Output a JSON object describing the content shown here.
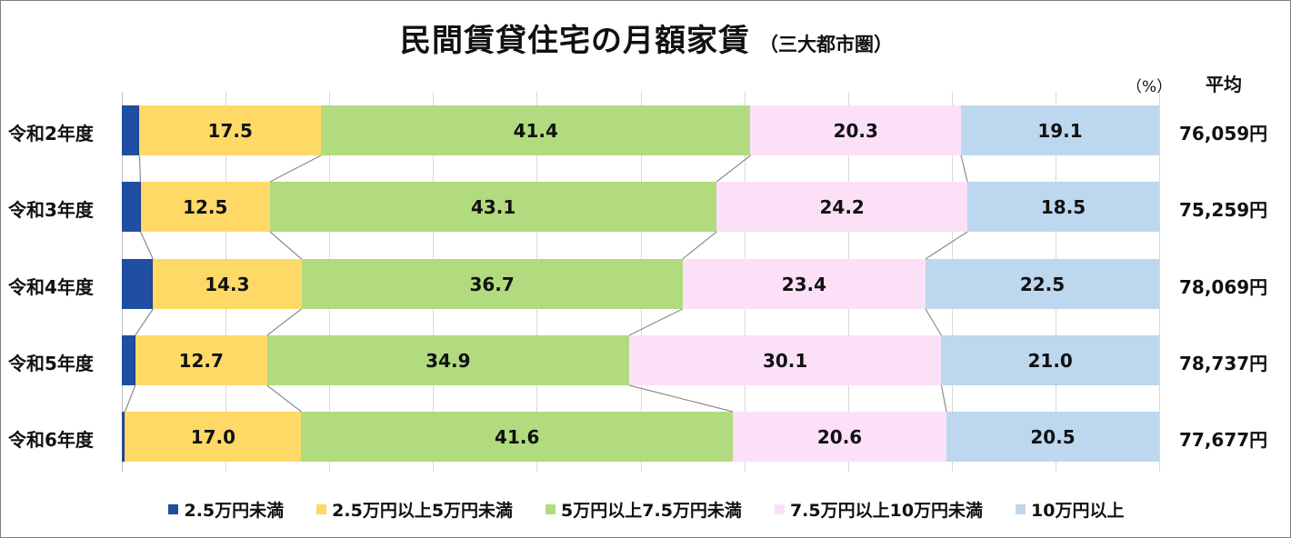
{
  "title": {
    "main": "民間賃貸住宅の月額家賃",
    "sub": "（三大都市圏）"
  },
  "unit_label": "（%）",
  "average_header": "平均",
  "colors": {
    "under_25k": "#1f4ea3",
    "25k_to_50k": "#ffd966",
    "50k_to_75k": "#b1db7e",
    "75k_to_100k": "#fbe0f8",
    "over_100k": "#bdd7ee"
  },
  "chart_data": {
    "type": "bar",
    "orientation": "horizontal",
    "stacked": "100%",
    "title": "民間賃貸住宅の月額家賃（三大都市圏）",
    "xlabel": "",
    "ylabel": "",
    "unit": "%",
    "xlim": [
      0,
      100
    ],
    "grid": true,
    "gridlines_at": [
      0,
      10,
      20,
      30,
      40,
      50,
      60,
      70,
      80,
      90,
      100
    ],
    "legend_position": "bottom",
    "series_connectors": true,
    "categories": [
      "令和2年度",
      "令和3年度",
      "令和4年度",
      "令和5年度",
      "令和6年度"
    ],
    "series": [
      {
        "name": "2.5万円未満",
        "color": "#1f4ea3",
        "values": [
          1.7,
          1.8,
          3.0,
          1.3,
          0.3
        ],
        "labels": [
          "",
          "",
          "",
          "",
          ""
        ]
      },
      {
        "name": "2.5万円以上5万円未満",
        "color": "#ffd966",
        "values": [
          17.5,
          12.5,
          14.3,
          12.7,
          17.0
        ],
        "labels": [
          "17.5",
          "12.5",
          "14.3",
          "12.7",
          "17.0"
        ]
      },
      {
        "name": "5万円以上7.5万円未満",
        "color": "#b1db7e",
        "values": [
          41.4,
          43.1,
          36.7,
          34.9,
          41.6
        ],
        "labels": [
          "41.4",
          "43.1",
          "36.7",
          "34.9",
          "41.6"
        ]
      },
      {
        "name": "7.5万円以上10万円未満",
        "color": "#fbe0f8",
        "values": [
          20.3,
          24.2,
          23.4,
          30.1,
          20.6
        ],
        "labels": [
          "20.3",
          "24.2",
          "23.4",
          "30.1",
          "20.6"
        ]
      },
      {
        "name": "10万円以上",
        "color": "#bdd7ee",
        "values": [
          19.1,
          18.5,
          22.5,
          21.0,
          20.5
        ],
        "labels": [
          "19.1",
          "18.5",
          "22.5",
          "21.0",
          "20.5"
        ]
      }
    ],
    "averages": [
      "76,059円",
      "75,259円",
      "78,069円",
      "78,737円",
      "77,677円"
    ]
  },
  "legend": [
    {
      "label": "2.5万円未満",
      "color": "#1f4ea3"
    },
    {
      "label": "2.5万円以上5万円未満",
      "color": "#ffd966"
    },
    {
      "label": "5万円以上7.5万円未満",
      "color": "#b1db7e"
    },
    {
      "label": "7.5万円以上10万円未満",
      "color": "#fbe0f8"
    },
    {
      "label": "10万円以上",
      "color": "#bdd7ee"
    }
  ]
}
